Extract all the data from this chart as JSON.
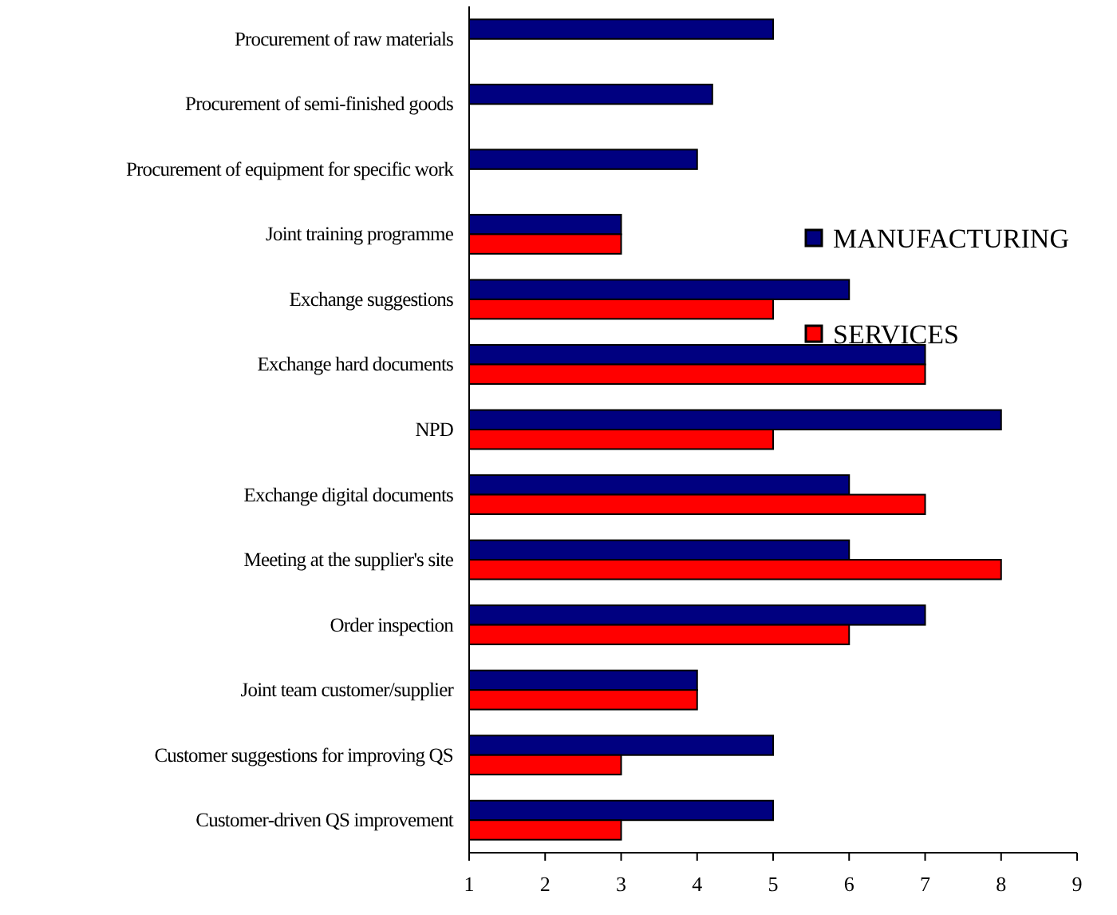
{
  "chart_data": {
    "type": "bar",
    "orientation": "horizontal",
    "categories": [
      "Procurement of raw materials",
      "Procurement of semi-finished goods",
      "Procurement of equipment for specific work",
      "Joint training programme",
      "Exchange suggestions",
      "Exchange hard documents",
      "NPD",
      "Exchange digital documents",
      "Meeting at the supplier's site",
      "Order inspection",
      "Joint team customer/supplier",
      "Customer suggestions for improving QS",
      "Customer-driven QS  improvement"
    ],
    "series": [
      {
        "name": "MANUFACTURING",
        "color": "#000080",
        "values": [
          5,
          4.2,
          4,
          3,
          6,
          7,
          8,
          6,
          6,
          7,
          4,
          5,
          5
        ]
      },
      {
        "name": "SERVICES",
        "color": "#ff0000",
        "values": [
          null,
          null,
          null,
          3,
          5,
          7,
          5,
          7,
          8,
          6,
          4,
          3,
          3
        ]
      }
    ],
    "xlim": [
      1,
      9
    ],
    "xticks": [
      1,
      2,
      3,
      4,
      5,
      6,
      7,
      8,
      9
    ],
    "grid": false,
    "legend": "top right"
  }
}
